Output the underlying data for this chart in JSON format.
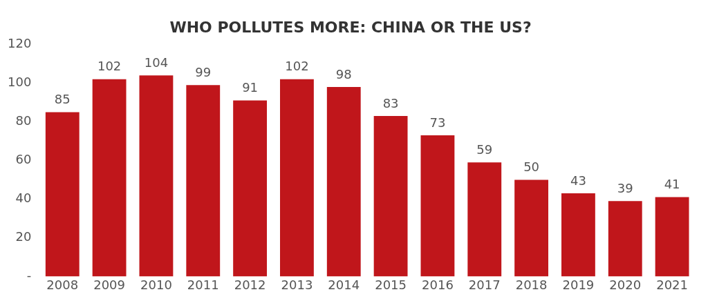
{
  "chart_data": {
    "type": "bar",
    "title": "WHO POLLUTES MORE: CHINA OR THE US?",
    "categories": [
      "2008",
      "2009",
      "2010",
      "2011",
      "2012",
      "2013",
      "2014",
      "2015",
      "2016",
      "2017",
      "2018",
      "2019",
      "2020",
      "2021"
    ],
    "values": [
      85,
      102,
      104,
      99,
      91,
      102,
      98,
      83,
      73,
      59,
      50,
      43,
      39,
      41
    ],
    "color": "#c0161b",
    "ylim": [
      0,
      120
    ],
    "yticks": [
      {
        "value": 0,
        "label": "-"
      },
      20,
      40,
      60,
      80,
      100,
      120
    ],
    "data_labels": true,
    "grid": false,
    "legend": false
  }
}
